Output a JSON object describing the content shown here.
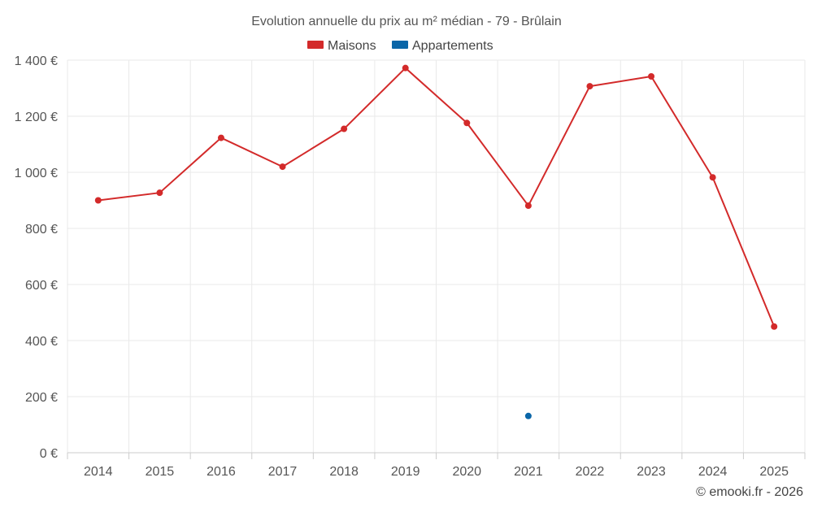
{
  "chart_data": {
    "type": "line",
    "title": "Evolution annuelle du prix au m² médian - 79 - Brûlain",
    "categories": [
      "2014",
      "2015",
      "2016",
      "2017",
      "2018",
      "2019",
      "2020",
      "2021",
      "2022",
      "2023",
      "2024",
      "2025"
    ],
    "series": [
      {
        "name": "Maisons",
        "color": "#d32a2a",
        "values": [
          900,
          927,
          1123,
          1020,
          1155,
          1372,
          1176,
          881,
          1307,
          1342,
          982,
          450
        ]
      },
      {
        "name": "Appartements",
        "color": "#0b66a8",
        "values": [
          null,
          null,
          null,
          null,
          null,
          null,
          null,
          131,
          null,
          null,
          null,
          null
        ]
      }
    ],
    "y_ticks": [
      "0 €",
      "200 €",
      "400 €",
      "600 €",
      "800 €",
      "1 000 €",
      "1 200 €",
      "1 400 €"
    ],
    "ylim": [
      0,
      1400
    ],
    "y_step": 200,
    "grid": true,
    "legend_position": "top-center"
  },
  "credit": "© emooki.fr - 2026"
}
